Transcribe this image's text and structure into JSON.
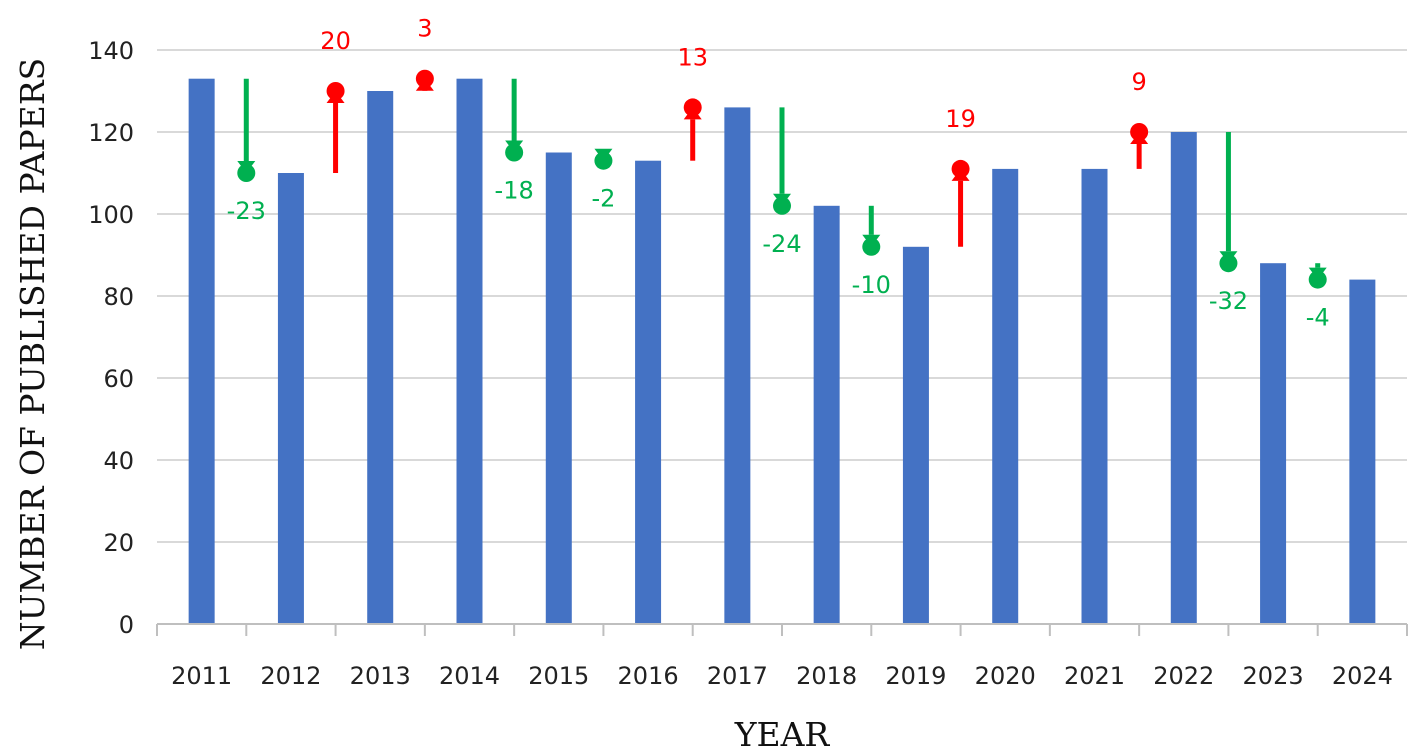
{
  "chart_data": {
    "type": "bar",
    "title": "",
    "xlabel": "YEAR",
    "ylabel": "NUMBER OF PUBLISHED PAPERS",
    "categories": [
      "2011",
      "2012",
      "2013",
      "2014",
      "2015",
      "2016",
      "2017",
      "2018",
      "2019",
      "2020",
      "2021",
      "2022",
      "2023",
      "2024"
    ],
    "values": [
      133,
      110,
      130,
      133,
      115,
      113,
      126,
      102,
      92,
      111,
      111,
      120,
      88,
      84
    ],
    "ylim": [
      0,
      140
    ],
    "yticks": [
      "0",
      "20",
      "40",
      "60",
      "80",
      "100",
      "120",
      "140"
    ],
    "grid": true,
    "bar_color": "#4472c4",
    "changes": [
      {
        "after": "2011",
        "from": 133,
        "to": 110,
        "label": "-23",
        "direction": "down"
      },
      {
        "after": "2012",
        "from": 110,
        "to": 130,
        "label": "20",
        "direction": "up"
      },
      {
        "after": "2013",
        "from": 130,
        "to": 133,
        "label": "3",
        "direction": "up"
      },
      {
        "after": "2014",
        "from": 133,
        "to": 115,
        "label": "-18",
        "direction": "down"
      },
      {
        "after": "2015",
        "from": 115,
        "to": 113,
        "label": "-2",
        "direction": "down"
      },
      {
        "after": "2016",
        "from": 113,
        "to": 126,
        "label": "13",
        "direction": "up"
      },
      {
        "after": "2017",
        "from": 126,
        "to": 102,
        "label": "-24",
        "direction": "down"
      },
      {
        "after": "2018",
        "from": 102,
        "to": 92,
        "label": "-10",
        "direction": "down"
      },
      {
        "after": "2019",
        "from": 92,
        "to": 111,
        "label": "19",
        "direction": "up"
      },
      {
        "after": "2021",
        "from": 111,
        "to": 120,
        "label": "9",
        "direction": "up"
      },
      {
        "after": "2022",
        "from": 120,
        "to": 88,
        "label": "-32",
        "direction": "down"
      },
      {
        "after": "2023",
        "from": 88,
        "to": 84,
        "label": "-4",
        "direction": "down"
      }
    ],
    "up_color": "#ff0000",
    "down_color": "#00b050"
  }
}
